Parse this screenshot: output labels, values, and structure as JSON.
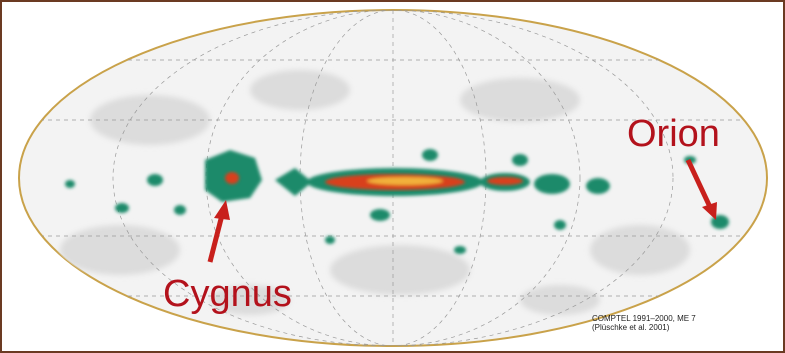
{
  "labels": {
    "orion": "Orion",
    "cygnus": "Cygnus"
  },
  "credit": {
    "line1": "COMPTEL 1991–2000, ME 7",
    "line2": "(Plüschke et al. 2001)"
  }
}
